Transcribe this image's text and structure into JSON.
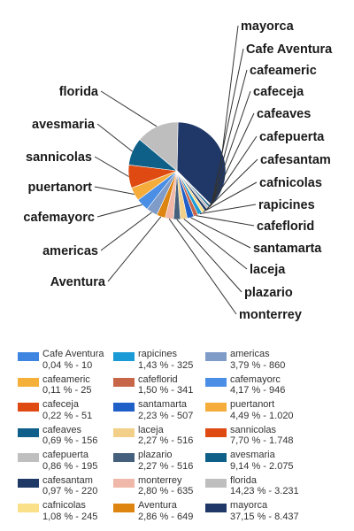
{
  "chart_data": {
    "type": "pie",
    "title": "",
    "total_shown": false,
    "slices": [
      {
        "name": "Cafe Aventura",
        "percent_label": "0,04 % - 10",
        "value": 10,
        "color": "#3d85e0"
      },
      {
        "name": "cafeameric",
        "percent_label": "0,11 % - 25",
        "value": 25,
        "color": "#f5b03a"
      },
      {
        "name": "cafeceja",
        "percent_label": "0,22 % - 51",
        "value": 51,
        "color": "#de4a12"
      },
      {
        "name": "cafeaves",
        "percent_label": "0,69 % - 156",
        "value": 156,
        "color": "#0f5f8a"
      },
      {
        "name": "cafepuerta",
        "percent_label": "0,86 % - 195",
        "value": 195,
        "color": "#bfbfbf"
      },
      {
        "name": "cafesantam",
        "percent_label": "0,97 % - 220",
        "value": 220,
        "color": "#1f3966"
      },
      {
        "name": "cafnicolas",
        "percent_label": "1,08 % - 245",
        "value": 245,
        "color": "#fbe08a"
      },
      {
        "name": "rapicines",
        "percent_label": "1,43 % - 325",
        "value": 325,
        "color": "#1a9ad6"
      },
      {
        "name": "cafeflorid",
        "percent_label": "1,50 % - 341",
        "value": 341,
        "color": "#c8664a"
      },
      {
        "name": "santamarta",
        "percent_label": "2,23 % - 507",
        "value": 507,
        "color": "#1f5fc8"
      },
      {
        "name": "laceja",
        "percent_label": "2,27 % - 516",
        "value": 516,
        "color": "#f2d089"
      },
      {
        "name": "plazario",
        "percent_label": "2,27 % - 516",
        "value": 516,
        "color": "#44607c"
      },
      {
        "name": "monterrey",
        "percent_label": "2,80 % - 635",
        "value": 635,
        "color": "#efb8a8"
      },
      {
        "name": "Aventura",
        "percent_label": "2,86 % - 649",
        "value": 649,
        "color": "#de8410"
      },
      {
        "name": "americas",
        "percent_label": "3,79 % - 860",
        "value": 860,
        "color": "#7f9cc8"
      },
      {
        "name": "cafemayorc",
        "percent_label": "4,17 % - 946",
        "value": 946,
        "color": "#4a8ee6"
      },
      {
        "name": "puertanort",
        "percent_label": "4,49 % - 1.020",
        "value": 1020,
        "color": "#f5ac3a"
      },
      {
        "name": "sannicolas",
        "percent_label": "7,70 % - 1.748",
        "value": 1748,
        "color": "#de4a12"
      },
      {
        "name": "avesmaria",
        "percent_label": "9,14 % - 2.075",
        "value": 2075,
        "color": "#0e6089"
      },
      {
        "name": "florida",
        "percent_label": "14,23 % - 3.231",
        "value": 3231,
        "color": "#bebebe"
      },
      {
        "name": "mayorca",
        "percent_label": "37,15 % - 8.437",
        "value": 8437,
        "color": "#1f3868"
      }
    ],
    "legend_position": "bottom"
  }
}
